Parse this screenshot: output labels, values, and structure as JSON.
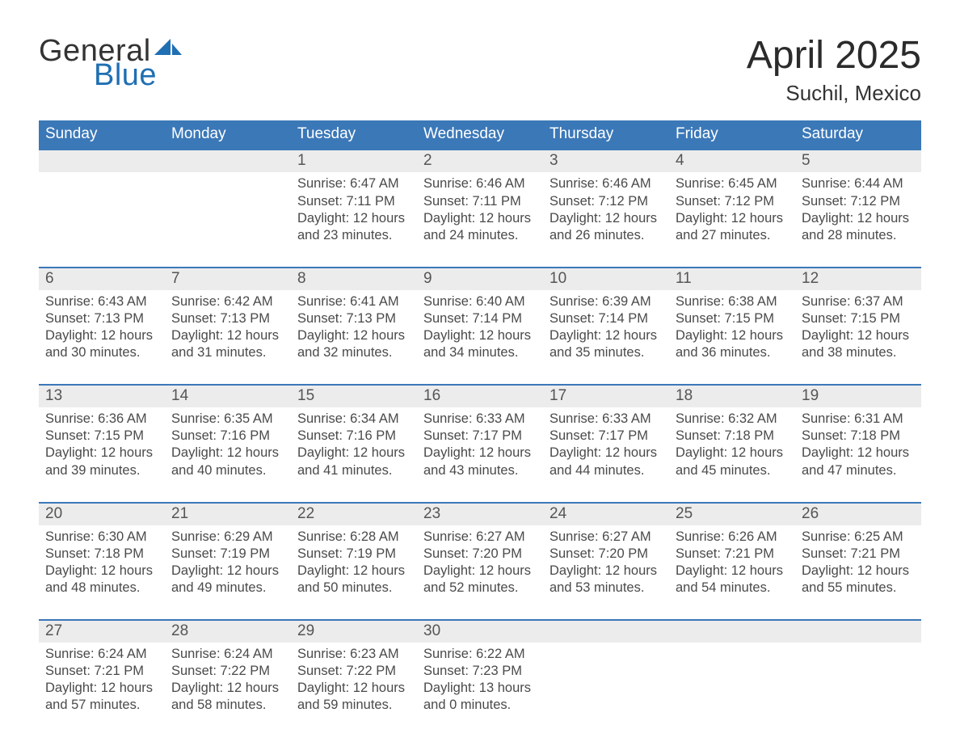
{
  "brand": {
    "line1": "General",
    "line2": "Blue",
    "accent_color": "#1f6fb2"
  },
  "title": {
    "month": "April 2025",
    "location": "Suchil, Mexico"
  },
  "colors": {
    "header_bar": "#3b78b8",
    "week_divider": "#2f639b",
    "daynum_row_bg": "#ececec",
    "background": "#ffffff",
    "text": "#3a3a3a"
  },
  "typography": {
    "month_title_fontsize": 48,
    "location_fontsize": 26,
    "dow_fontsize": 19,
    "daynum_fontsize": 19,
    "cell_fontsize": 16.5,
    "font_family": "Segoe UI"
  },
  "days_of_week": [
    "Sunday",
    "Monday",
    "Tuesday",
    "Wednesday",
    "Thursday",
    "Friday",
    "Saturday"
  ],
  "weeks": [
    [
      null,
      null,
      {
        "n": "1",
        "sunrise": "6:47 AM",
        "sunset": "7:11 PM",
        "daylight": "12 hours and 23 minutes."
      },
      {
        "n": "2",
        "sunrise": "6:46 AM",
        "sunset": "7:11 PM",
        "daylight": "12 hours and 24 minutes."
      },
      {
        "n": "3",
        "sunrise": "6:46 AM",
        "sunset": "7:12 PM",
        "daylight": "12 hours and 26 minutes."
      },
      {
        "n": "4",
        "sunrise": "6:45 AM",
        "sunset": "7:12 PM",
        "daylight": "12 hours and 27 minutes."
      },
      {
        "n": "5",
        "sunrise": "6:44 AM",
        "sunset": "7:12 PM",
        "daylight": "12 hours and 28 minutes."
      }
    ],
    [
      {
        "n": "6",
        "sunrise": "6:43 AM",
        "sunset": "7:13 PM",
        "daylight": "12 hours and 30 minutes."
      },
      {
        "n": "7",
        "sunrise": "6:42 AM",
        "sunset": "7:13 PM",
        "daylight": "12 hours and 31 minutes."
      },
      {
        "n": "8",
        "sunrise": "6:41 AM",
        "sunset": "7:13 PM",
        "daylight": "12 hours and 32 minutes."
      },
      {
        "n": "9",
        "sunrise": "6:40 AM",
        "sunset": "7:14 PM",
        "daylight": "12 hours and 34 minutes."
      },
      {
        "n": "10",
        "sunrise": "6:39 AM",
        "sunset": "7:14 PM",
        "daylight": "12 hours and 35 minutes."
      },
      {
        "n": "11",
        "sunrise": "6:38 AM",
        "sunset": "7:15 PM",
        "daylight": "12 hours and 36 minutes."
      },
      {
        "n": "12",
        "sunrise": "6:37 AM",
        "sunset": "7:15 PM",
        "daylight": "12 hours and 38 minutes."
      }
    ],
    [
      {
        "n": "13",
        "sunrise": "6:36 AM",
        "sunset": "7:15 PM",
        "daylight": "12 hours and 39 minutes."
      },
      {
        "n": "14",
        "sunrise": "6:35 AM",
        "sunset": "7:16 PM",
        "daylight": "12 hours and 40 minutes."
      },
      {
        "n": "15",
        "sunrise": "6:34 AM",
        "sunset": "7:16 PM",
        "daylight": "12 hours and 41 minutes."
      },
      {
        "n": "16",
        "sunrise": "6:33 AM",
        "sunset": "7:17 PM",
        "daylight": "12 hours and 43 minutes."
      },
      {
        "n": "17",
        "sunrise": "6:33 AM",
        "sunset": "7:17 PM",
        "daylight": "12 hours and 44 minutes."
      },
      {
        "n": "18",
        "sunrise": "6:32 AM",
        "sunset": "7:18 PM",
        "daylight": "12 hours and 45 minutes."
      },
      {
        "n": "19",
        "sunrise": "6:31 AM",
        "sunset": "7:18 PM",
        "daylight": "12 hours and 47 minutes."
      }
    ],
    [
      {
        "n": "20",
        "sunrise": "6:30 AM",
        "sunset": "7:18 PM",
        "daylight": "12 hours and 48 minutes."
      },
      {
        "n": "21",
        "sunrise": "6:29 AM",
        "sunset": "7:19 PM",
        "daylight": "12 hours and 49 minutes."
      },
      {
        "n": "22",
        "sunrise": "6:28 AM",
        "sunset": "7:19 PM",
        "daylight": "12 hours and 50 minutes."
      },
      {
        "n": "23",
        "sunrise": "6:27 AM",
        "sunset": "7:20 PM",
        "daylight": "12 hours and 52 minutes."
      },
      {
        "n": "24",
        "sunrise": "6:27 AM",
        "sunset": "7:20 PM",
        "daylight": "12 hours and 53 minutes."
      },
      {
        "n": "25",
        "sunrise": "6:26 AM",
        "sunset": "7:21 PM",
        "daylight": "12 hours and 54 minutes."
      },
      {
        "n": "26",
        "sunrise": "6:25 AM",
        "sunset": "7:21 PM",
        "daylight": "12 hours and 55 minutes."
      }
    ],
    [
      {
        "n": "27",
        "sunrise": "6:24 AM",
        "sunset": "7:21 PM",
        "daylight": "12 hours and 57 minutes."
      },
      {
        "n": "28",
        "sunrise": "6:24 AM",
        "sunset": "7:22 PM",
        "daylight": "12 hours and 58 minutes."
      },
      {
        "n": "29",
        "sunrise": "6:23 AM",
        "sunset": "7:22 PM",
        "daylight": "12 hours and 59 minutes."
      },
      {
        "n": "30",
        "sunrise": "6:22 AM",
        "sunset": "7:23 PM",
        "daylight": "13 hours and 0 minutes."
      },
      null,
      null,
      null
    ]
  ],
  "labels": {
    "sunrise": "Sunrise: ",
    "sunset": "Sunset: ",
    "daylight": "Daylight: "
  }
}
